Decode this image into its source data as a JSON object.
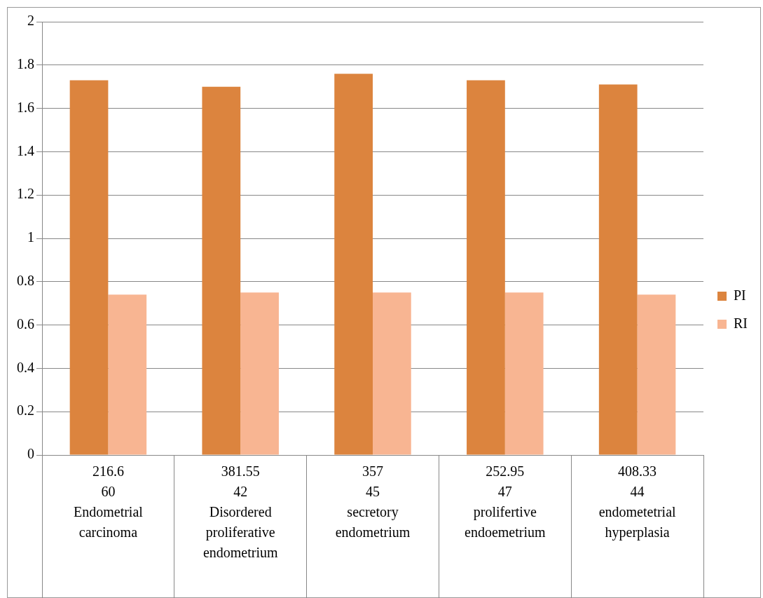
{
  "chart_data": {
    "type": "bar",
    "categories": [
      "216.6\n60\nEndometrial carcinoma",
      "381.55\n42\nDisordered proliferative endometrium",
      "357\n45\nsecretory endometrium",
      "252.95\n47\nprolifertive endoemetrium",
      "408.33\n44\nendometetrial hyperplasia"
    ],
    "series": [
      {
        "name": "PI",
        "color": "#dc843e",
        "values": [
          1.73,
          1.7,
          1.76,
          1.73,
          1.71
        ]
      },
      {
        "name": "RI",
        "color": "#f8b592",
        "values": [
          0.74,
          0.75,
          0.75,
          0.75,
          0.74
        ]
      }
    ],
    "ylim": [
      0,
      2
    ],
    "yticks": [
      0,
      0.2,
      0.4,
      0.6,
      0.8,
      1,
      1.2,
      1.4,
      1.6,
      1.8,
      2
    ],
    "grid": "y",
    "legend": "right"
  }
}
